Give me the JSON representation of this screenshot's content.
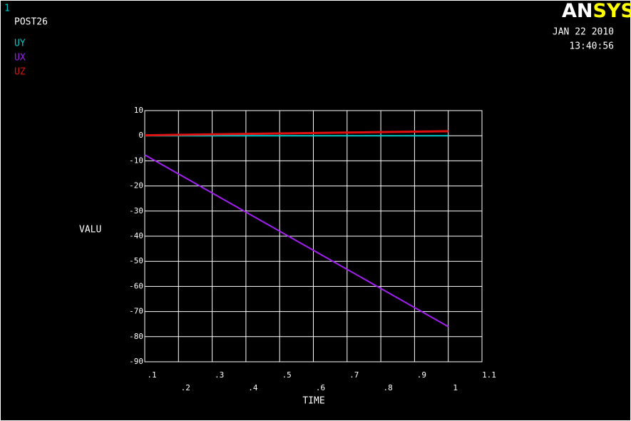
{
  "window_number": "1",
  "logo": {
    "white": "AN",
    "yellow": "SYS"
  },
  "date": "JAN 22 2010",
  "time": "13:40:56",
  "chart_data": {
    "type": "line",
    "title": "POST26",
    "xlabel": "TIME",
    "ylabel": "VALU",
    "x": [
      0.1,
      0.2,
      0.3,
      0.4,
      0.5,
      0.6,
      0.7,
      0.8,
      0.9,
      1.0
    ],
    "series": [
      {
        "name": "UY",
        "color": "#00c8c8",
        "values": [
          0,
          0,
          0,
          0,
          0,
          0,
          0,
          0,
          0,
          0
        ]
      },
      {
        "name": "UX",
        "color": "#a020f0",
        "values": [
          -7.6,
          -15.2,
          -22.8,
          -30.4,
          -38,
          -45.6,
          -53.2,
          -60.8,
          -68.4,
          -76
        ]
      },
      {
        "name": "UZ",
        "color": "#e01010",
        "values": [
          0.18,
          0.36,
          0.54,
          0.72,
          0.9,
          1.08,
          1.26,
          1.44,
          1.62,
          1.8
        ]
      }
    ],
    "xlim": [
      0.1,
      1.1
    ],
    "ylim": [
      -90,
      10
    ],
    "xticks": [
      {
        "value": 0.1,
        "label": ".1"
      },
      {
        "value": 0.2,
        "label": ".2"
      },
      {
        "value": 0.3,
        "label": ".3"
      },
      {
        "value": 0.4,
        "label": ".4"
      },
      {
        "value": 0.5,
        "label": ".5"
      },
      {
        "value": 0.6,
        "label": ".6"
      },
      {
        "value": 0.7,
        "label": ".7"
      },
      {
        "value": 0.8,
        "label": ".8"
      },
      {
        "value": 0.9,
        "label": ".9"
      },
      1,
      1.1
    ],
    "yticks": [
      10,
      0,
      -10,
      -20,
      -30,
      -40,
      -50,
      -60,
      -70,
      -80,
      -90
    ],
    "grid": true
  }
}
